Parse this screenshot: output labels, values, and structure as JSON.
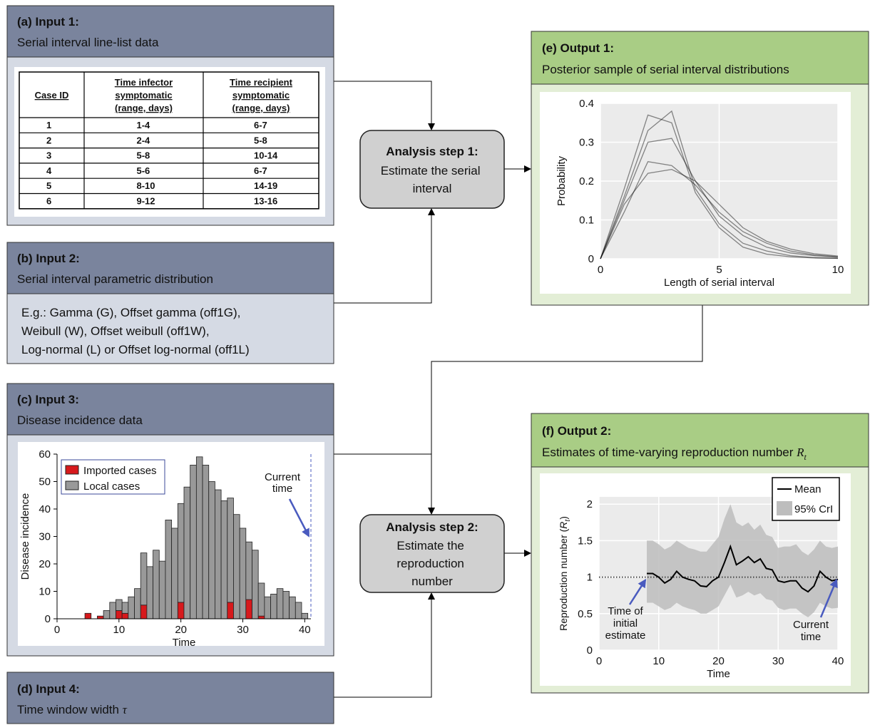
{
  "panel_a": {
    "title": "(a) Input 1:",
    "subtitle": "Serial interval line-list data",
    "table": {
      "header": [
        [
          "Case ID"
        ],
        [
          "Time infector",
          "symptomatic",
          "(range, days)"
        ],
        [
          "Time recipient",
          "symptomatic",
          "(range, days)"
        ]
      ],
      "rows": [
        [
          "1",
          "1-4",
          "6-7"
        ],
        [
          "2",
          "2-4",
          "5-8"
        ],
        [
          "3",
          "5-8",
          "10-14"
        ],
        [
          "4",
          "5-6",
          "6-7"
        ],
        [
          "5",
          "8-10",
          "14-19"
        ],
        [
          "6",
          "9-12",
          "13-16"
        ]
      ]
    }
  },
  "panel_b": {
    "title": "(b) Input 2:",
    "subtitle": "Serial interval parametric distribution",
    "body": [
      "E.g.: Gamma (G), Offset gamma (off1G),",
      "Weibull (W), Offset weibull (off1W),",
      "Log-normal (L) or Offset log-normal (off1L)"
    ]
  },
  "panel_c": {
    "title": "(c) Input 3:",
    "subtitle": "Disease incidence data",
    "chart": {
      "type": "bar",
      "stacked": true,
      "x": [
        5,
        6,
        7,
        8,
        9,
        10,
        11,
        12,
        13,
        14,
        15,
        16,
        17,
        18,
        19,
        20,
        21,
        22,
        23,
        24,
        25,
        26,
        27,
        28,
        29,
        30,
        31,
        32,
        33,
        34,
        35,
        36,
        37,
        38,
        39,
        40
      ],
      "series": [
        {
          "name": "Imported cases",
          "color": "#d7191c",
          "values": [
            2,
            0,
            1,
            0,
            0,
            3,
            2,
            0,
            0,
            5,
            0,
            0,
            0,
            0,
            0,
            6,
            0,
            0,
            0,
            0,
            0,
            0,
            0,
            6,
            0,
            0,
            7,
            0,
            1,
            0,
            0,
            0,
            0,
            0,
            0,
            0
          ]
        },
        {
          "name": "Local cases",
          "color": "#999999",
          "values": [
            0,
            0,
            0,
            3,
            6,
            4,
            4,
            8,
            11,
            19,
            19,
            25,
            21,
            36,
            33,
            36,
            48,
            56,
            59,
            56,
            50,
            47,
            43,
            38,
            38,
            33,
            21,
            25,
            12,
            8,
            9,
            11,
            10,
            8,
            6,
            2
          ]
        }
      ],
      "xlim": [
        0,
        41
      ],
      "ylim": [
        0,
        60
      ],
      "xticks": [
        0,
        10,
        20,
        30,
        40
      ],
      "yticks": [
        0,
        10,
        20,
        30,
        40,
        50,
        60
      ],
      "xlabel": "Time",
      "ylabel": "Disease incidence",
      "annotation": {
        "text": [
          "Current",
          "time"
        ],
        "x": 41
      }
    }
  },
  "panel_d": {
    "title": "(d) Input 4:",
    "subtitle": [
      "Time window width ",
      "τ"
    ]
  },
  "panel_e": {
    "title": "(e) Output 1:",
    "subtitle": "Posterior sample of serial interval distributions",
    "chart": {
      "type": "line",
      "x": [
        0,
        1,
        2,
        3,
        4,
        5,
        6,
        7,
        8,
        9,
        10
      ],
      "series": [
        {
          "color": "#000000",
          "values": [
            0,
            0.15,
            0.3,
            0.31,
            0.2,
            0.11,
            0.06,
            0.03,
            0.015,
            0.008,
            0.004
          ]
        },
        {
          "color": "#000000",
          "values": [
            0,
            0.12,
            0.25,
            0.24,
            0.19,
            0.12,
            0.07,
            0.04,
            0.02,
            0.01,
            0.005
          ]
        },
        {
          "color": "#000000",
          "values": [
            0,
            0.18,
            0.37,
            0.35,
            0.17,
            0.08,
            0.03,
            0.012,
            0.005,
            0.002,
            0.001
          ]
        },
        {
          "color": "#000000",
          "values": [
            0,
            0.14,
            0.22,
            0.23,
            0.2,
            0.14,
            0.08,
            0.045,
            0.025,
            0.013,
            0.007
          ]
        },
        {
          "color": "#000000",
          "values": [
            0,
            0.16,
            0.33,
            0.38,
            0.18,
            0.09,
            0.04,
            0.02,
            0.008,
            0.003,
            0.001
          ]
        }
      ],
      "xlim": [
        0,
        10
      ],
      "ylim": [
        0,
        0.4
      ],
      "xticks": [
        0,
        5,
        10
      ],
      "yticks": [
        0,
        0.1,
        0.2,
        0.3,
        0.4
      ],
      "grid": true,
      "xlabel": "Length of serial interval",
      "ylabel": "Probability"
    }
  },
  "panel_f": {
    "title": "(f) Output 2:",
    "subtitle": [
      "Estimates of time-varying reproduction number ",
      "R",
      "t"
    ],
    "chart": {
      "type": "line",
      "x": [
        8,
        9,
        10,
        11,
        12,
        13,
        14,
        15,
        16,
        17,
        18,
        19,
        20,
        21,
        22,
        23,
        24,
        25,
        26,
        27,
        28,
        29,
        30,
        31,
        32,
        33,
        34,
        35,
        36,
        37,
        38,
        39,
        40
      ],
      "series": [
        {
          "name": "Mean",
          "color": "#000000",
          "values": [
            1.05,
            1.05,
            1.0,
            0.92,
            0.97,
            1.08,
            1.0,
            0.97,
            0.95,
            0.88,
            0.87,
            0.95,
            1.0,
            1.2,
            1.42,
            1.17,
            1.22,
            1.28,
            1.2,
            1.25,
            1.12,
            1.1,
            0.95,
            0.93,
            0.95,
            0.95,
            0.85,
            0.8,
            0.88,
            1.08,
            1.0,
            0.95,
            0.97
          ]
        },
        {
          "name": "95% CrI",
          "color": "#bdbdbd",
          "lower": [
            0.65,
            0.65,
            0.6,
            0.55,
            0.58,
            0.65,
            0.6,
            0.57,
            0.55,
            0.5,
            0.5,
            0.55,
            0.6,
            0.75,
            0.9,
            0.72,
            0.75,
            0.8,
            0.75,
            0.78,
            0.7,
            0.68,
            0.58,
            0.55,
            0.57,
            0.57,
            0.5,
            0.45,
            0.52,
            0.65,
            0.6,
            0.57,
            0.58
          ],
          "upper": [
            1.5,
            1.5,
            1.45,
            1.38,
            1.42,
            1.5,
            1.45,
            1.4,
            1.38,
            1.35,
            1.35,
            1.45,
            1.55,
            1.8,
            2.0,
            1.75,
            1.7,
            1.75,
            1.65,
            1.72,
            1.58,
            1.55,
            1.4,
            1.42,
            1.42,
            1.45,
            1.35,
            1.3,
            1.38,
            1.5,
            1.42,
            1.4,
            1.42
          ]
        }
      ],
      "reference_line": 1,
      "xlim": [
        0,
        40
      ],
      "ylim": [
        0,
        2.1
      ],
      "xticks": [
        0,
        10,
        20,
        30,
        40
      ],
      "yticks": [
        0,
        0.5,
        1,
        1.5,
        2
      ],
      "grid": true,
      "xlabel": "Time",
      "ylabel": [
        "Reproduction number (",
        "R",
        "t",
        ")"
      ],
      "annotations": [
        {
          "text": [
            "Time of",
            "initial",
            "estimate"
          ],
          "x": 8
        },
        {
          "text": [
            "Current",
            "time"
          ],
          "x": 40
        }
      ]
    }
  },
  "step_1": {
    "title": "Analysis step 1:",
    "body": [
      "Estimate the serial",
      "interval"
    ]
  },
  "step_2": {
    "title": "Analysis step 2:",
    "body": [
      "Estimate the",
      "reproduction",
      "number"
    ]
  }
}
